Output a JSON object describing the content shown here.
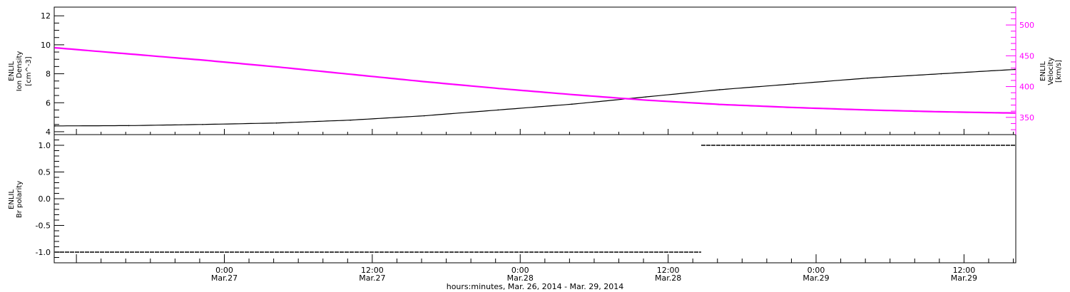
{
  "chart_data": [
    {
      "type": "line",
      "panel": "top",
      "ylabel_left": [
        "ENLIL",
        "Ion Density",
        "[cm^-3]"
      ],
      "ylabel_right": [
        "ENLIL",
        "Velocity",
        "[km/s]"
      ],
      "y_left_ticks": [
        "12",
        "10",
        "8",
        "6",
        "4"
      ],
      "y_right_ticks": [
        "500",
        "450",
        "400",
        "350"
      ],
      "ylim_left": [
        3.8,
        12.6
      ],
      "ylim_right": [
        322,
        529
      ],
      "right_axis_color": "#ff00ff",
      "series": [
        {
          "name": "Ion Density",
          "axis": "left",
          "color": "#000000",
          "x_hours": [
            0,
            6,
            12,
            18,
            24,
            30,
            36,
            42,
            48,
            54,
            60,
            66,
            72,
            78
          ],
          "values": [
            4.4,
            4.42,
            4.5,
            4.6,
            4.8,
            5.1,
            5.5,
            5.9,
            6.4,
            6.9,
            7.3,
            7.7,
            8.0,
            8.3
          ]
        },
        {
          "name": "Velocity",
          "axis": "right",
          "color": "#ff00ff",
          "x_hours": [
            0,
            6,
            12,
            18,
            24,
            30,
            36,
            42,
            48,
            54,
            60,
            66,
            72,
            78
          ],
          "values": [
            463,
            453,
            443,
            432,
            420,
            408,
            397,
            387,
            378,
            371,
            366,
            362,
            359,
            357
          ]
        }
      ]
    },
    {
      "type": "scatter",
      "panel": "bottom",
      "ylabel": [
        "ENLIL",
        "Br polarity"
      ],
      "y_ticks": [
        "1.0",
        "0.5",
        "0.0",
        "-0.5",
        "-1.0"
      ],
      "ylim": [
        -1.2,
        1.2
      ],
      "series": [
        {
          "name": "Br polarity",
          "color": "#000000",
          "segments": [
            {
              "x_start_hours": 0,
              "x_end_hours": 52.5,
              "value": -1.0
            },
            {
              "x_start_hours": 52.5,
              "x_end_hours": 78,
              "value": 1.0
            }
          ]
        }
      ]
    }
  ],
  "x_axis": {
    "start_label_hours_from_mar26_00": 10.2,
    "end_label_hours_from_mar26_00": 88.2,
    "ticks": [
      {
        "hours_from_mar26_00": 24,
        "time": "0:00",
        "date": "Mar.27"
      },
      {
        "hours_from_mar26_00": 36,
        "time": "12:00",
        "date": "Mar.27"
      },
      {
        "hours_from_mar26_00": 48,
        "time": "0:00",
        "date": "Mar.28"
      },
      {
        "hours_from_mar26_00": 60,
        "time": "12:00",
        "date": "Mar.28"
      },
      {
        "hours_from_mar26_00": 72,
        "time": "0:00",
        "date": "Mar.29"
      },
      {
        "hours_from_mar26_00": 84,
        "time": "12:00",
        "date": "Mar.29"
      }
    ],
    "title": "hours:minutes, Mar. 26, 2014 - Mar. 29, 2014"
  }
}
